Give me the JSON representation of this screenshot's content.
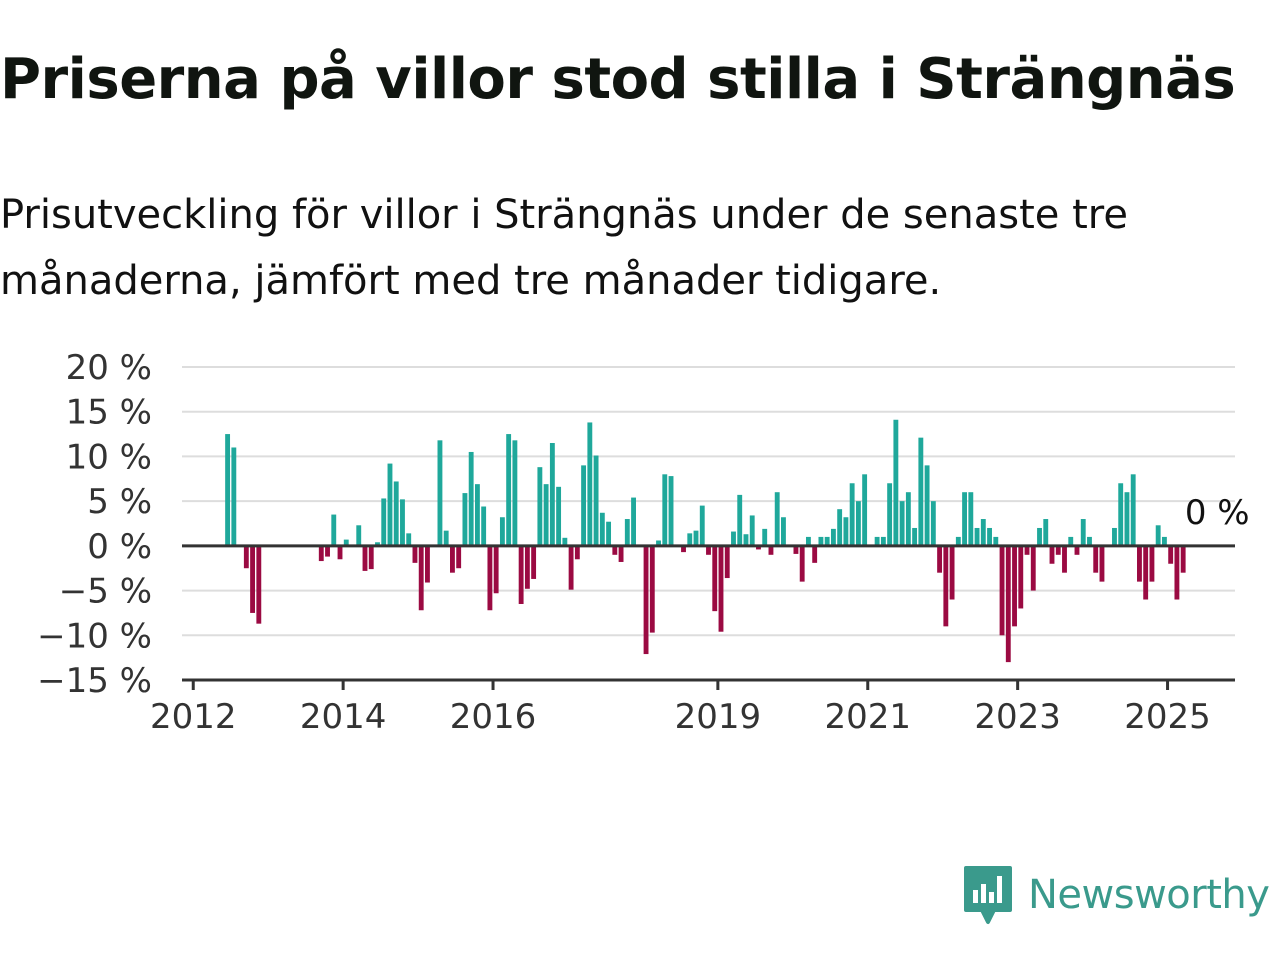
{
  "title": "Priserna på villor stod stilla i Strängnäs",
  "subtitle": "Prisutveckling för villor i Strängnäs under de senaste tre månaderna, jämfört med tre månader tidigare.",
  "brand": {
    "name": "Newsworthy",
    "icon": "newsworthy-logo-icon"
  },
  "colors": {
    "positive": "#1fa89b",
    "negative": "#9b0a42",
    "grid": "#dddddd",
    "axis": "#333333",
    "brand": "#3a9a8c"
  },
  "chart_data": {
    "type": "bar",
    "title": "",
    "xlabel": "",
    "ylabel": "",
    "ylim": [
      -15,
      20
    ],
    "y_ticks": [
      20,
      15,
      10,
      5,
      0,
      -5,
      -10,
      -15
    ],
    "y_tick_labels": [
      "20 %",
      "15 %",
      "10 %",
      "5 %",
      "0 %",
      "−5 %",
      "−10 %",
      "−15 %"
    ],
    "x_tick_labels": [
      "2012",
      "2014",
      "2016",
      "2019",
      "2021",
      "2023",
      "2025"
    ],
    "x_tick_years": [
      2012,
      2014,
      2016,
      2019,
      2021,
      2023,
      2025
    ],
    "x_range": [
      2011.85,
      2025.9
    ],
    "last_value_label": "0 %",
    "grid": true,
    "legend": "none",
    "bars": [
      {
        "x": "2012-06",
        "v": 12.5
      },
      {
        "x": "2012-07",
        "v": 11.0
      },
      {
        "x": "2012-09",
        "v": -2.5
      },
      {
        "x": "2012-10",
        "v": -7.5
      },
      {
        "x": "2012-11",
        "v": -8.7
      },
      {
        "x": "2013-09",
        "v": -1.7
      },
      {
        "x": "2013-10",
        "v": -1.2
      },
      {
        "x": "2013-11",
        "v": 3.5
      },
      {
        "x": "2013-12",
        "v": -1.5
      },
      {
        "x": "2014-01",
        "v": 0.7
      },
      {
        "x": "2014-03",
        "v": 2.3
      },
      {
        "x": "2014-04",
        "v": -2.8
      },
      {
        "x": "2014-05",
        "v": -2.6
      },
      {
        "x": "2014-06",
        "v": 0.4
      },
      {
        "x": "2014-07",
        "v": 5.3
      },
      {
        "x": "2014-08",
        "v": 9.2
      },
      {
        "x": "2014-09",
        "v": 7.2
      },
      {
        "x": "2014-10",
        "v": 5.2
      },
      {
        "x": "2014-11",
        "v": 1.4
      },
      {
        "x": "2014-12",
        "v": -1.9
      },
      {
        "x": "2015-01",
        "v": -7.2
      },
      {
        "x": "2015-02",
        "v": -4.1
      },
      {
        "x": "2015-04",
        "v": 11.8
      },
      {
        "x": "2015-05",
        "v": 1.7
      },
      {
        "x": "2015-06",
        "v": -3.0
      },
      {
        "x": "2015-07",
        "v": -2.5
      },
      {
        "x": "2015-08",
        "v": 5.9
      },
      {
        "x": "2015-09",
        "v": 10.5
      },
      {
        "x": "2015-10",
        "v": 6.9
      },
      {
        "x": "2015-11",
        "v": 4.4
      },
      {
        "x": "2015-12",
        "v": -7.2
      },
      {
        "x": "2016-01",
        "v": -5.3
      },
      {
        "x": "2016-02",
        "v": 3.2
      },
      {
        "x": "2016-03",
        "v": 12.5
      },
      {
        "x": "2016-04",
        "v": 11.8
      },
      {
        "x": "2016-05",
        "v": -6.5
      },
      {
        "x": "2016-06",
        "v": -4.8
      },
      {
        "x": "2016-07",
        "v": -3.7
      },
      {
        "x": "2016-08",
        "v": 8.8
      },
      {
        "x": "2016-09",
        "v": 6.9
      },
      {
        "x": "2016-10",
        "v": 11.5
      },
      {
        "x": "2016-11",
        "v": 6.6
      },
      {
        "x": "2016-12",
        "v": 0.9
      },
      {
        "x": "2017-01",
        "v": -4.9
      },
      {
        "x": "2017-02",
        "v": -1.5
      },
      {
        "x": "2017-03",
        "v": 9.0
      },
      {
        "x": "2017-04",
        "v": 13.8
      },
      {
        "x": "2017-05",
        "v": 10.1
      },
      {
        "x": "2017-06",
        "v": 3.7
      },
      {
        "x": "2017-07",
        "v": 2.7
      },
      {
        "x": "2017-08",
        "v": -1.0
      },
      {
        "x": "2017-09",
        "v": -1.8
      },
      {
        "x": "2017-10",
        "v": 3.0
      },
      {
        "x": "2017-11",
        "v": 5.4
      },
      {
        "x": "2018-01",
        "v": -12.1
      },
      {
        "x": "2018-02",
        "v": -9.7
      },
      {
        "x": "2018-03",
        "v": 0.6
      },
      {
        "x": "2018-04",
        "v": 8.0
      },
      {
        "x": "2018-05",
        "v": 7.8
      },
      {
        "x": "2018-07",
        "v": -0.7
      },
      {
        "x": "2018-08",
        "v": 1.4
      },
      {
        "x": "2018-09",
        "v": 1.7
      },
      {
        "x": "2018-10",
        "v": 4.5
      },
      {
        "x": "2018-11",
        "v": -1.0
      },
      {
        "x": "2018-12",
        "v": -7.3
      },
      {
        "x": "2019-01",
        "v": -9.6
      },
      {
        "x": "2019-02",
        "v": -3.6
      },
      {
        "x": "2019-03",
        "v": 1.6
      },
      {
        "x": "2019-04",
        "v": 5.7
      },
      {
        "x": "2019-05",
        "v": 1.3
      },
      {
        "x": "2019-06",
        "v": 3.4
      },
      {
        "x": "2019-07",
        "v": -0.4
      },
      {
        "x": "2019-08",
        "v": 1.9
      },
      {
        "x": "2019-09",
        "v": -1.0
      },
      {
        "x": "2019-10",
        "v": 6.0
      },
      {
        "x": "2019-11",
        "v": 3.2
      },
      {
        "x": "2020-01",
        "v": -0.9
      },
      {
        "x": "2020-02",
        "v": -4.0
      },
      {
        "x": "2020-03",
        "v": 1.0
      },
      {
        "x": "2020-04",
        "v": -1.9
      },
      {
        "x": "2020-05",
        "v": 1.0
      },
      {
        "x": "2020-06",
        "v": 1.0
      },
      {
        "x": "2020-07",
        "v": 1.9
      },
      {
        "x": "2020-08",
        "v": 4.1
      },
      {
        "x": "2020-09",
        "v": 3.2
      },
      {
        "x": "2020-10",
        "v": 7.0
      },
      {
        "x": "2020-11",
        "v": 5.0
      },
      {
        "x": "2020-12",
        "v": 8.0
      },
      {
        "x": "2021-02",
        "v": 1.0
      },
      {
        "x": "2021-03",
        "v": 1.0
      },
      {
        "x": "2021-04",
        "v": 7.0
      },
      {
        "x": "2021-05",
        "v": 14.1
      },
      {
        "x": "2021-06",
        "v": 5.0
      },
      {
        "x": "2021-07",
        "v": 6.0
      },
      {
        "x": "2021-08",
        "v": 2.0
      },
      {
        "x": "2021-09",
        "v": 12.1
      },
      {
        "x": "2021-10",
        "v": 9.0
      },
      {
        "x": "2021-11",
        "v": 5.0
      },
      {
        "x": "2021-12",
        "v": -3.0
      },
      {
        "x": "2022-01",
        "v": -9.0
      },
      {
        "x": "2022-02",
        "v": -6.0
      },
      {
        "x": "2022-03",
        "v": 1.0
      },
      {
        "x": "2022-04",
        "v": 6.0
      },
      {
        "x": "2022-05",
        "v": 6.0
      },
      {
        "x": "2022-06",
        "v": 2.0
      },
      {
        "x": "2022-07",
        "v": 3.0
      },
      {
        "x": "2022-08",
        "v": 2.0
      },
      {
        "x": "2022-09",
        "v": 1.0
      },
      {
        "x": "2022-10",
        "v": -10.0
      },
      {
        "x": "2022-11",
        "v": -13.0
      },
      {
        "x": "2022-12",
        "v": -9.0
      },
      {
        "x": "2023-01",
        "v": -7.0
      },
      {
        "x": "2023-02",
        "v": -1.0
      },
      {
        "x": "2023-03",
        "v": -5.0
      },
      {
        "x": "2023-04",
        "v": 2.0
      },
      {
        "x": "2023-05",
        "v": 3.0
      },
      {
        "x": "2023-06",
        "v": -2.0
      },
      {
        "x": "2023-07",
        "v": -1.0
      },
      {
        "x": "2023-08",
        "v": -3.0
      },
      {
        "x": "2023-09",
        "v": 1.0
      },
      {
        "x": "2023-10",
        "v": -1.0
      },
      {
        "x": "2023-11",
        "v": 3.0
      },
      {
        "x": "2023-12",
        "v": 1.0
      },
      {
        "x": "2024-01",
        "v": -3.0
      },
      {
        "x": "2024-02",
        "v": -4.0
      },
      {
        "x": "2024-04",
        "v": 2.0
      },
      {
        "x": "2024-05",
        "v": 7.0
      },
      {
        "x": "2024-06",
        "v": 6.0
      },
      {
        "x": "2024-07",
        "v": 8.0
      },
      {
        "x": "2024-08",
        "v": -4.0
      },
      {
        "x": "2024-09",
        "v": -6.0
      },
      {
        "x": "2024-10",
        "v": -4.0
      },
      {
        "x": "2024-11",
        "v": 2.3
      },
      {
        "x": "2024-12",
        "v": 1.0
      },
      {
        "x": "2025-01",
        "v": -2.0
      },
      {
        "x": "2025-02",
        "v": -6.0
      },
      {
        "x": "2025-03",
        "v": -3.0
      }
    ]
  }
}
